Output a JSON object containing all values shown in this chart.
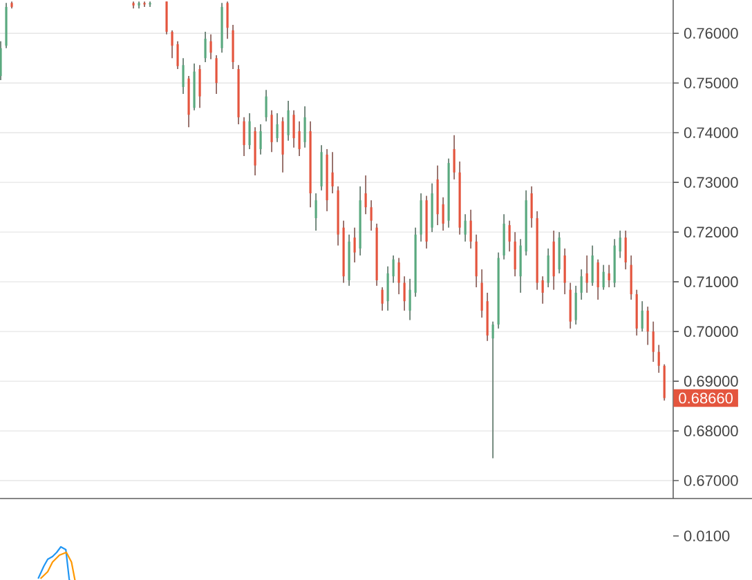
{
  "chart_data": [
    {
      "type": "candlestick",
      "categories": [
        null,
        null,
        null,
        null,
        null,
        null,
        null,
        null,
        null,
        null,
        null,
        null,
        null,
        null,
        null,
        null,
        null,
        null,
        null,
        null,
        null,
        null,
        null,
        null,
        null,
        null,
        null,
        null,
        null,
        null,
        null,
        null,
        null,
        null,
        null,
        null,
        null,
        null,
        null,
        null,
        null,
        null,
        null,
        null,
        null,
        null,
        null,
        null,
        null,
        null,
        null,
        null,
        null,
        null,
        null,
        null,
        null,
        null,
        null,
        null,
        null,
        null,
        null,
        null,
        null,
        null,
        null,
        null,
        null,
        null,
        null,
        null,
        null,
        null,
        null,
        null,
        null,
        null,
        null,
        null,
        null,
        null,
        null,
        null,
        null,
        null,
        null,
        null,
        null,
        null,
        null,
        null,
        null,
        null,
        null,
        null,
        null,
        null,
        null,
        null,
        null,
        null,
        null,
        null,
        null,
        null,
        null,
        null,
        null,
        null,
        null,
        null,
        null,
        null,
        null,
        null,
        null,
        null,
        null,
        null,
        null
      ],
      "ohlc": [
        [
          0.7514,
          0.7584,
          0.7506,
          0.757
        ],
        [
          0.7575,
          0.7661,
          0.757,
          0.7653
        ],
        [
          0.7661,
          0.7664,
          0.765,
          0.7653
        ],
        null,
        null,
        null,
        null,
        null,
        null,
        null,
        null,
        null,
        null,
        null,
        null,
        null,
        null,
        null,
        null,
        null,
        null,
        null,
        null,
        null,
        [
          0.7661,
          0.7664,
          0.765,
          0.7656
        ],
        [
          0.7656,
          0.7664,
          0.765,
          0.7661
        ],
        [
          0.7661,
          0.7664,
          0.7653,
          0.7658
        ],
        [
          0.7658,
          0.7664,
          0.7653,
          0.7661
        ],
        null,
        null,
        [
          0.7664,
          0.7664,
          0.7598,
          0.7603
        ],
        [
          0.7603,
          0.7606,
          0.755,
          0.7575
        ],
        [
          0.7578,
          0.7584,
          0.7528,
          0.7534
        ],
        [
          0.7492,
          0.755,
          0.7478,
          0.7536
        ],
        [
          0.7509,
          0.7514,
          0.7411,
          0.7436
        ],
        [
          0.745,
          0.7539,
          0.7445,
          0.7523
        ],
        [
          0.7528,
          0.7536,
          0.745,
          0.7473
        ],
        [
          0.755,
          0.7603,
          0.7542,
          0.7589
        ],
        [
          0.7584,
          0.7598,
          0.7548,
          0.7561
        ],
        [
          0.755,
          0.7556,
          0.7478,
          0.75
        ],
        [
          0.757,
          0.7661,
          0.7561,
          0.7653
        ],
        [
          0.7661,
          0.7664,
          0.7589,
          0.7611
        ],
        [
          0.7606,
          0.7617,
          0.7528,
          0.7542
        ],
        [
          0.7528,
          0.7536,
          0.7417,
          0.7431
        ],
        [
          0.7423,
          0.7431,
          0.7353,
          0.7375
        ],
        [
          0.7375,
          0.7439,
          0.7367,
          0.7423
        ],
        [
          0.7403,
          0.7411,
          0.7314,
          0.7334
        ],
        [
          0.7367,
          0.7417,
          0.7356,
          0.7403
        ],
        [
          0.7431,
          0.7486,
          0.7423,
          0.7473
        ],
        [
          0.7436,
          0.7445,
          0.7361,
          0.7381
        ],
        [
          0.7389,
          0.7439,
          0.7381,
          0.7417
        ],
        [
          0.7423,
          0.7431,
          0.732,
          0.7356
        ],
        [
          0.7395,
          0.7464,
          0.7384,
          0.7445
        ],
        [
          0.7436,
          0.7445,
          0.737,
          0.7389
        ],
        [
          0.7403,
          0.7423,
          0.7353,
          0.7367
        ],
        [
          0.7381,
          0.7453,
          0.737,
          0.7431
        ],
        [
          0.7403,
          0.7423,
          0.725,
          0.7278
        ],
        [
          0.7228,
          0.7278,
          0.7203,
          0.7264
        ],
        [
          0.7292,
          0.7375,
          0.7284,
          0.7361
        ],
        [
          0.7356,
          0.7367,
          0.7242,
          0.7264
        ],
        [
          0.732,
          0.7361,
          0.7278,
          0.7292
        ],
        [
          0.7284,
          0.7292,
          0.7173,
          0.7195
        ],
        [
          0.7209,
          0.7223,
          0.7098,
          0.7111
        ],
        [
          0.7103,
          0.7195,
          0.7092,
          0.7181
        ],
        [
          0.7189,
          0.7209,
          0.7139,
          0.7159
        ],
        [
          0.7167,
          0.7292,
          0.7153,
          0.7264
        ],
        [
          0.7278,
          0.7314,
          0.7236,
          0.725
        ],
        [
          0.725,
          0.7264,
          0.7203,
          0.7223
        ],
        [
          0.7209,
          0.7217,
          0.7092,
          0.7103
        ],
        [
          0.7084,
          0.7089,
          0.7042,
          0.7056
        ],
        [
          0.7061,
          0.7131,
          0.7042,
          0.7117
        ],
        [
          0.7111,
          0.7153,
          0.7098,
          0.7145
        ],
        [
          0.7139,
          0.7148,
          0.7075,
          0.7098
        ],
        [
          0.7098,
          0.7111,
          0.7042,
          0.7061
        ],
        [
          0.7042,
          0.7106,
          0.7023,
          0.7084
        ],
        [
          0.7078,
          0.7209,
          0.707,
          0.7195
        ],
        [
          0.7195,
          0.7278,
          0.7181,
          0.7264
        ],
        [
          0.7264,
          0.7273,
          0.7167,
          0.7181
        ],
        [
          0.7209,
          0.7298,
          0.72,
          0.7278
        ],
        [
          0.7306,
          0.7334,
          0.7214,
          0.7236
        ],
        [
          0.7256,
          0.727,
          0.7203,
          0.7217
        ],
        [
          0.7223,
          0.7348,
          0.7209,
          0.7339
        ],
        [
          0.7367,
          0.7395,
          0.7306,
          0.732
        ],
        [
          0.732,
          0.7342,
          0.7195,
          0.7209
        ],
        [
          0.7195,
          0.7236,
          0.7181,
          0.7223
        ],
        [
          0.7223,
          0.7245,
          0.7167,
          0.7181
        ],
        [
          0.7181,
          0.7195,
          0.7089,
          0.7111
        ],
        [
          0.7098,
          0.7125,
          0.7028,
          0.7042
        ],
        [
          0.7061,
          0.7078,
          0.6981,
          0.6992
        ],
        [
          0.6986,
          0.702,
          0.6745,
          0.7014
        ],
        [
          0.7014,
          0.7159,
          0.7006,
          0.7148
        ],
        [
          0.7153,
          0.7236,
          0.7145,
          0.7217
        ],
        [
          0.7214,
          0.7223,
          0.7161,
          0.7181
        ],
        [
          0.7181,
          0.72,
          0.7111,
          0.7125
        ],
        [
          0.7111,
          0.7186,
          0.7078,
          0.7173
        ],
        [
          0.7161,
          0.7284,
          0.7153,
          0.7264
        ],
        [
          0.7278,
          0.7292,
          0.7209,
          0.7228
        ],
        [
          0.7228,
          0.7242,
          0.7084,
          0.7098
        ],
        [
          0.7103,
          0.7111,
          0.7056,
          0.7078
        ],
        [
          0.7098,
          0.7167,
          0.7089,
          0.7153
        ],
        [
          0.7181,
          0.7203,
          0.7084,
          0.7111
        ],
        [
          0.7125,
          0.72,
          0.7117,
          0.7189
        ],
        [
          0.7153,
          0.7167,
          0.7075,
          0.7098
        ],
        [
          0.7084,
          0.7098,
          0.7006,
          0.702
        ],
        [
          0.7023,
          0.7092,
          0.7014,
          0.7078
        ],
        [
          0.7078,
          0.7125,
          0.7064,
          0.7111
        ],
        [
          0.7117,
          0.7153,
          0.7078,
          0.7098
        ],
        [
          0.7098,
          0.7173,
          0.7092,
          0.7153
        ],
        [
          0.7139,
          0.7145,
          0.7064,
          0.7089
        ],
        [
          0.7089,
          0.7134,
          0.7084,
          0.712
        ],
        [
          0.7117,
          0.7134,
          0.7089,
          0.7103
        ],
        [
          0.7098,
          0.7186,
          0.7089,
          0.7173
        ],
        [
          0.7161,
          0.7203,
          0.7148,
          0.7189
        ],
        [
          0.7189,
          0.7203,
          0.7125,
          0.7139
        ],
        [
          0.7134,
          0.7153,
          0.7064,
          0.7075
        ],
        [
          0.7075,
          0.7084,
          0.6992,
          0.7006
        ],
        [
          0.7006,
          0.7061,
          0.7,
          0.7042
        ],
        [
          0.7042,
          0.705,
          0.6973,
          0.7
        ],
        [
          0.7,
          0.702,
          0.6939,
          0.6959
        ],
        [
          0.6959,
          0.6973,
          0.6917,
          0.6931
        ],
        [
          0.6931,
          0.6934,
          0.6861,
          0.6866
        ]
      ],
      "colors": [
        "#5aa97f",
        "#5aa97f",
        "#e4553e",
        null,
        null,
        null,
        null,
        null,
        null,
        null,
        null,
        null,
        null,
        null,
        null,
        null,
        null,
        null,
        null,
        null,
        null,
        null,
        null,
        null,
        "#e4553e",
        "#5aa97f",
        "#e4553e",
        "#5aa97f",
        null,
        null,
        "#e4553e",
        "#e4553e",
        "#e4553e",
        "#5aa97f",
        "#e4553e",
        "#5aa97f",
        "#e4553e",
        "#5aa97f",
        "#e4553e",
        "#e4553e",
        "#5aa97f",
        "#e4553e",
        "#e4553e",
        "#e4553e",
        "#e4553e",
        "#5aa97f",
        "#e4553e",
        "#5aa97f",
        "#5aa97f",
        "#e4553e",
        "#5aa97f",
        "#e4553e",
        "#5aa97f",
        "#e4553e",
        "#e4553e",
        "#5aa97f",
        "#e4553e",
        "#5aa97f",
        "#5aa97f",
        "#e4553e",
        "#e4553e",
        "#e4553e",
        "#e4553e",
        "#5aa97f",
        "#e4553e",
        "#5aa97f",
        "#e4553e",
        "#e4553e",
        "#e4553e",
        "#e4553e",
        "#5aa97f",
        "#5aa97f",
        "#e4553e",
        "#e4553e",
        "#5aa97f",
        "#5aa97f",
        "#5aa97f",
        "#e4553e",
        "#5aa97f",
        "#e4553e",
        "#e4553e",
        "#5aa97f",
        "#e4553e",
        "#e4553e",
        "#5aa97f",
        "#e4553e",
        "#e4553e",
        "#e4553e",
        "#e4553e",
        "#5aa97f",
        "#5aa97f",
        "#5aa97f",
        "#e4553e",
        "#e4553e",
        "#5aa97f",
        "#5aa97f",
        "#e4553e",
        "#e4553e",
        "#e4553e",
        "#5aa97f",
        "#e4553e",
        "#5aa97f",
        "#e4553e",
        "#e4553e",
        "#5aa97f",
        "#5aa97f",
        "#e4553e",
        "#5aa97f",
        "#e4553e",
        "#5aa97f",
        "#e4553e",
        "#5aa97f",
        "#5aa97f",
        "#e4553e",
        "#e4553e",
        "#e4553e",
        "#5aa97f",
        "#e4553e",
        "#e4553e",
        "#e4553e",
        "#e4553e"
      ],
      "ylim": [
        0.6664,
        0.7667
      ],
      "yticks": [
        {
          "value": 0.67,
          "label": "0.67000"
        },
        {
          "value": 0.68,
          "label": "0.68000"
        },
        {
          "value": 0.69,
          "label": "0.69000"
        },
        {
          "value": 0.7,
          "label": "0.70000"
        },
        {
          "value": 0.71,
          "label": "0.71000"
        },
        {
          "value": 0.72,
          "label": "0.72000"
        },
        {
          "value": 0.73,
          "label": "0.73000"
        },
        {
          "value": 0.74,
          "label": "0.74000"
        },
        {
          "value": 0.75,
          "label": "0.75000"
        },
        {
          "value": 0.76,
          "label": "0.76000"
        }
      ],
      "grid": "y",
      "tick_labels": "y",
      "annotations": [
        "0.68660"
      ]
    },
    {
      "type": "other",
      "annotations": [
        "0.0100"
      ]
    }
  ]
}
